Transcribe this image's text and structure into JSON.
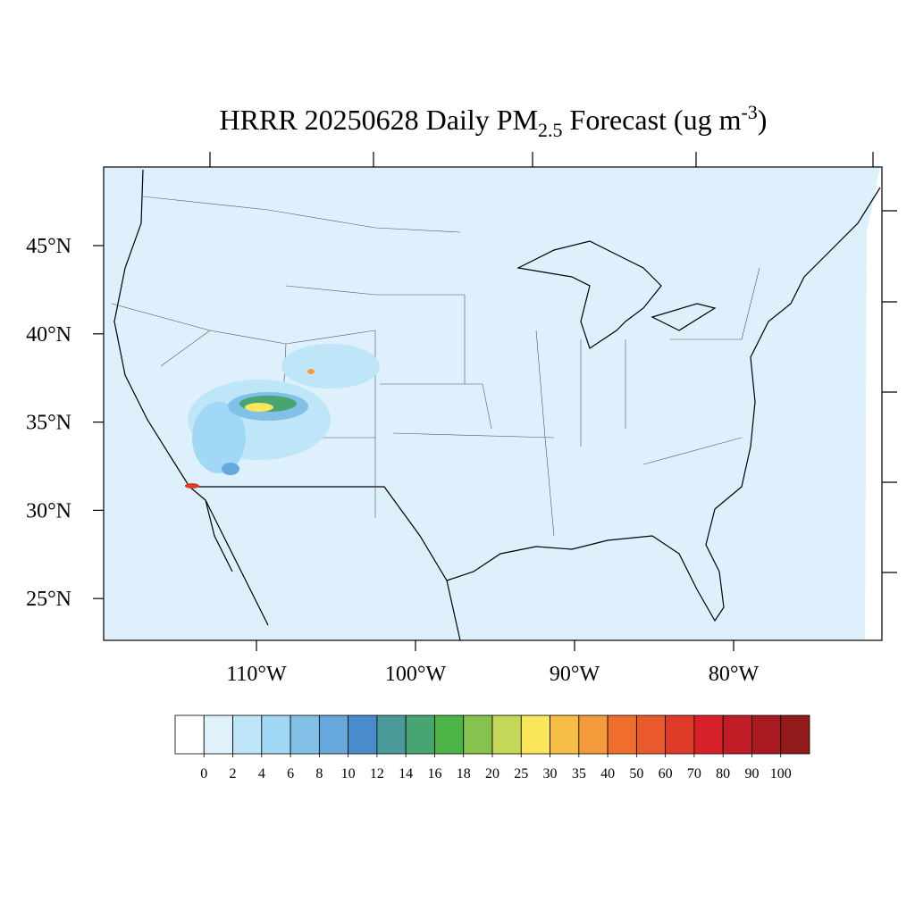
{
  "map": {
    "title_parts": [
      "HRRR 20250628 Daily PM",
      "2.5",
      " Forecast (ug m",
      "-3",
      ")"
    ],
    "lat_ticks": [
      {
        "value": 45,
        "label": "45°N"
      },
      {
        "value": 40,
        "label": "40°N"
      },
      {
        "value": 35,
        "label": "35°N"
      },
      {
        "value": 30,
        "label": "30°N"
      },
      {
        "value": 25,
        "label": "25°N"
      }
    ],
    "lon_ticks": [
      {
        "value": -110,
        "label": "110°W"
      },
      {
        "value": -100,
        "label": "100°W"
      },
      {
        "value": -90,
        "label": "90°W"
      },
      {
        "value": -80,
        "label": "80°W"
      }
    ],
    "colorbar": {
      "levels": [
        0,
        2,
        4,
        6,
        8,
        10,
        12,
        14,
        16,
        18,
        20,
        25,
        30,
        35,
        40,
        50,
        60,
        70,
        80,
        90,
        100
      ],
      "colors": [
        "#ffffff",
        "#dff1fb",
        "#bfe6f8",
        "#a0d8f5",
        "#82c0e8",
        "#66a8dc",
        "#4a8ccb",
        "#4a9a9a",
        "#48a470",
        "#4cb447",
        "#86c24e",
        "#c4d758",
        "#f9e65a",
        "#f8bd47",
        "#f59a3b",
        "#f06e2d",
        "#e85a2c",
        "#e03a28",
        "#d82029",
        "#c01d26",
        "#a81a20",
        "#921a1b"
      ]
    }
  }
}
